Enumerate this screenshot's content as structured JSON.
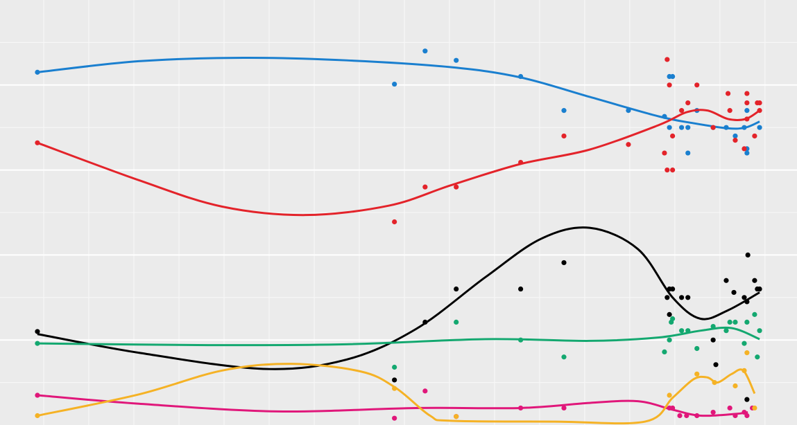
{
  "chart_data": {
    "type": "scatter",
    "xlim": [
      -0.97,
      16.71
    ],
    "ylim": [
      0,
      50
    ],
    "xticks": [
      0,
      1,
      2,
      3,
      4,
      5,
      6,
      7,
      8,
      9,
      10,
      11,
      12,
      13,
      14,
      15,
      16
    ],
    "yticks": [
      5,
      10,
      15,
      20,
      25,
      30,
      35,
      40,
      45
    ],
    "grid": true,
    "series": [
      {
        "color": "#1a7fcf",
        "x": [
          -0.14,
          7.78,
          8.46,
          9.15,
          10.58,
          11.54,
          12.97,
          13.77,
          13.88,
          13.95,
          13.88,
          14.15,
          14.29,
          14.29,
          14.49,
          14.85,
          15.14,
          15.34,
          15.6,
          15.6,
          15.6,
          15.88,
          15.54
        ],
        "values": [
          41.5,
          40.1,
          44.0,
          42.9,
          41.0,
          37.0,
          37.0,
          36.3,
          41.0,
          41.0,
          35.0,
          35.0,
          35.0,
          32.0,
          37.0,
          35.0,
          35.0,
          34.0,
          37.0,
          32.5,
          32.0,
          35.0,
          35.0
        ],
        "trend_x": [
          -0.14,
          2.11,
          4.42,
          6.72,
          9.03,
          10.57,
          12.11,
          13.65,
          14.42,
          15.18,
          15.57,
          15.88
        ],
        "trend": [
          41.5,
          42.8,
          43.2,
          42.9,
          42.1,
          40.9,
          38.6,
          36.3,
          35.5,
          34.9,
          35.0,
          35.7
        ]
      },
      {
        "color": "#e3232a",
        "x": [
          -0.14,
          7.78,
          8.46,
          9.15,
          10.58,
          11.54,
          12.97,
          13.77,
          13.83,
          13.88,
          13.83,
          13.95,
          13.95,
          14.15,
          14.29,
          14.49,
          14.85,
          15.18,
          15.22,
          15.34,
          15.54,
          15.6,
          15.6,
          15.6,
          15.77,
          15.83,
          15.88,
          15.88
        ],
        "values": [
          33.2,
          23.9,
          28.0,
          28.0,
          30.9,
          34.0,
          33.0,
          32.0,
          43.0,
          40.0,
          30.0,
          30.0,
          34.0,
          37.0,
          37.9,
          40.0,
          35.0,
          39.0,
          37.0,
          33.5,
          32.5,
          39.0,
          37.9,
          36.0,
          34.0,
          37.9,
          37.0,
          37.9
        ],
        "trend_x": [
          -0.14,
          2.11,
          3.95,
          5.8,
          7.65,
          9.03,
          10.57,
          12.11,
          13.65,
          14.26,
          14.72,
          15.18,
          15.57,
          15.88
        ],
        "trend": [
          33.2,
          28.8,
          25.7,
          24.7,
          25.8,
          28.2,
          30.7,
          32.4,
          35.3,
          36.8,
          37.0,
          36.0,
          36.0,
          37.0
        ]
      },
      {
        "color": "#000000",
        "x": [
          -0.14,
          7.78,
          8.46,
          9.15,
          10.58,
          11.54,
          13.83,
          13.88,
          13.95,
          13.88,
          14.15,
          14.29,
          14.85,
          14.91,
          15.14,
          15.31,
          15.54,
          15.6,
          15.62,
          15.6,
          15.77,
          15.83,
          15.88
        ],
        "values": [
          11.0,
          5.3,
          12.1,
          16.0,
          16.0,
          19.1,
          15.0,
          16.0,
          16.0,
          13.0,
          15.0,
          15.0,
          10.0,
          7.1,
          17.0,
          15.6,
          15.0,
          14.5,
          20.0,
          3.0,
          17.0,
          16.0,
          16.0
        ],
        "trend_x": [
          -0.14,
          2.11,
          4.88,
          6.72,
          8.26,
          9.8,
          11.03,
          12.11,
          13.18,
          13.95,
          14.57,
          15.18,
          15.88
        ],
        "trend": [
          10.7,
          8.5,
          6.6,
          7.7,
          11.3,
          17.4,
          21.9,
          23.2,
          20.7,
          15.0,
          12.5,
          13.5,
          15.6
        ]
      },
      {
        "color": "#14a870",
        "x": [
          -0.14,
          7.78,
          9.15,
          10.58,
          11.54,
          13.77,
          13.88,
          13.92,
          13.95,
          14.15,
          14.29,
          14.49,
          14.85,
          15.14,
          15.22,
          15.34,
          15.54,
          15.6,
          15.77,
          15.83,
          15.88
        ],
        "values": [
          9.6,
          6.8,
          12.1,
          10.0,
          8.0,
          8.6,
          10.0,
          12.1,
          12.5,
          11.1,
          11.1,
          9.0,
          11.6,
          11.1,
          12.1,
          12.1,
          9.6,
          12.1,
          13.0,
          8.0,
          11.1
        ],
        "trend_x": [
          -0.14,
          3.65,
          6.72,
          9.8,
          12.11,
          13.65,
          14.57,
          15.26,
          15.88
        ],
        "trend": [
          9.6,
          9.4,
          9.5,
          10.1,
          9.9,
          10.3,
          11.1,
          11.4,
          10.1
        ]
      },
      {
        "color": "#e0177a",
        "x": [
          -0.14,
          7.78,
          8.46,
          9.15,
          10.58,
          11.54,
          13.88,
          13.95,
          14.11,
          14.26,
          14.49,
          14.85,
          15.22,
          15.34,
          15.54,
          15.6,
          15.72
        ],
        "values": [
          3.5,
          0.8,
          4.0,
          1.0,
          2.0,
          2.0,
          2.0,
          2.0,
          1.1,
          1.1,
          1.1,
          1.5,
          2.0,
          1.1,
          1.5,
          1.1,
          2.0
        ],
        "trend_x": [
          -0.14,
          2.11,
          5.18,
          8.26,
          10.57,
          12.11,
          13.18,
          13.95,
          14.57,
          15.34,
          15.62
        ],
        "trend": [
          3.5,
          2.5,
          1.6,
          2.0,
          2.0,
          2.6,
          2.8,
          1.8,
          1.1,
          1.3,
          1.5
        ]
      },
      {
        "color": "#f5b225",
        "x": [
          -0.14,
          7.78,
          9.15,
          13.88,
          14.49,
          14.88,
          15.34,
          15.54,
          15.6,
          15.77
        ],
        "values": [
          1.1,
          4.3,
          1.0,
          3.5,
          6.0,
          5.0,
          4.6,
          6.4,
          8.5,
          2.0
        ],
        "trend_x": [
          -0.14,
          2.11,
          3.95,
          5.49,
          7.03,
          7.8,
          8.57,
          9.03,
          11.34,
          13.34,
          13.95,
          14.42,
          14.72,
          14.95,
          15.26,
          15.52,
          15.77
        ],
        "trend": [
          1.1,
          3.6,
          6.4,
          7.2,
          6.3,
          4.4,
          1.1,
          0.5,
          0.4,
          0.4,
          3.2,
          5.4,
          5.6,
          5.0,
          6.0,
          6.4,
          3.7
        ]
      }
    ]
  }
}
